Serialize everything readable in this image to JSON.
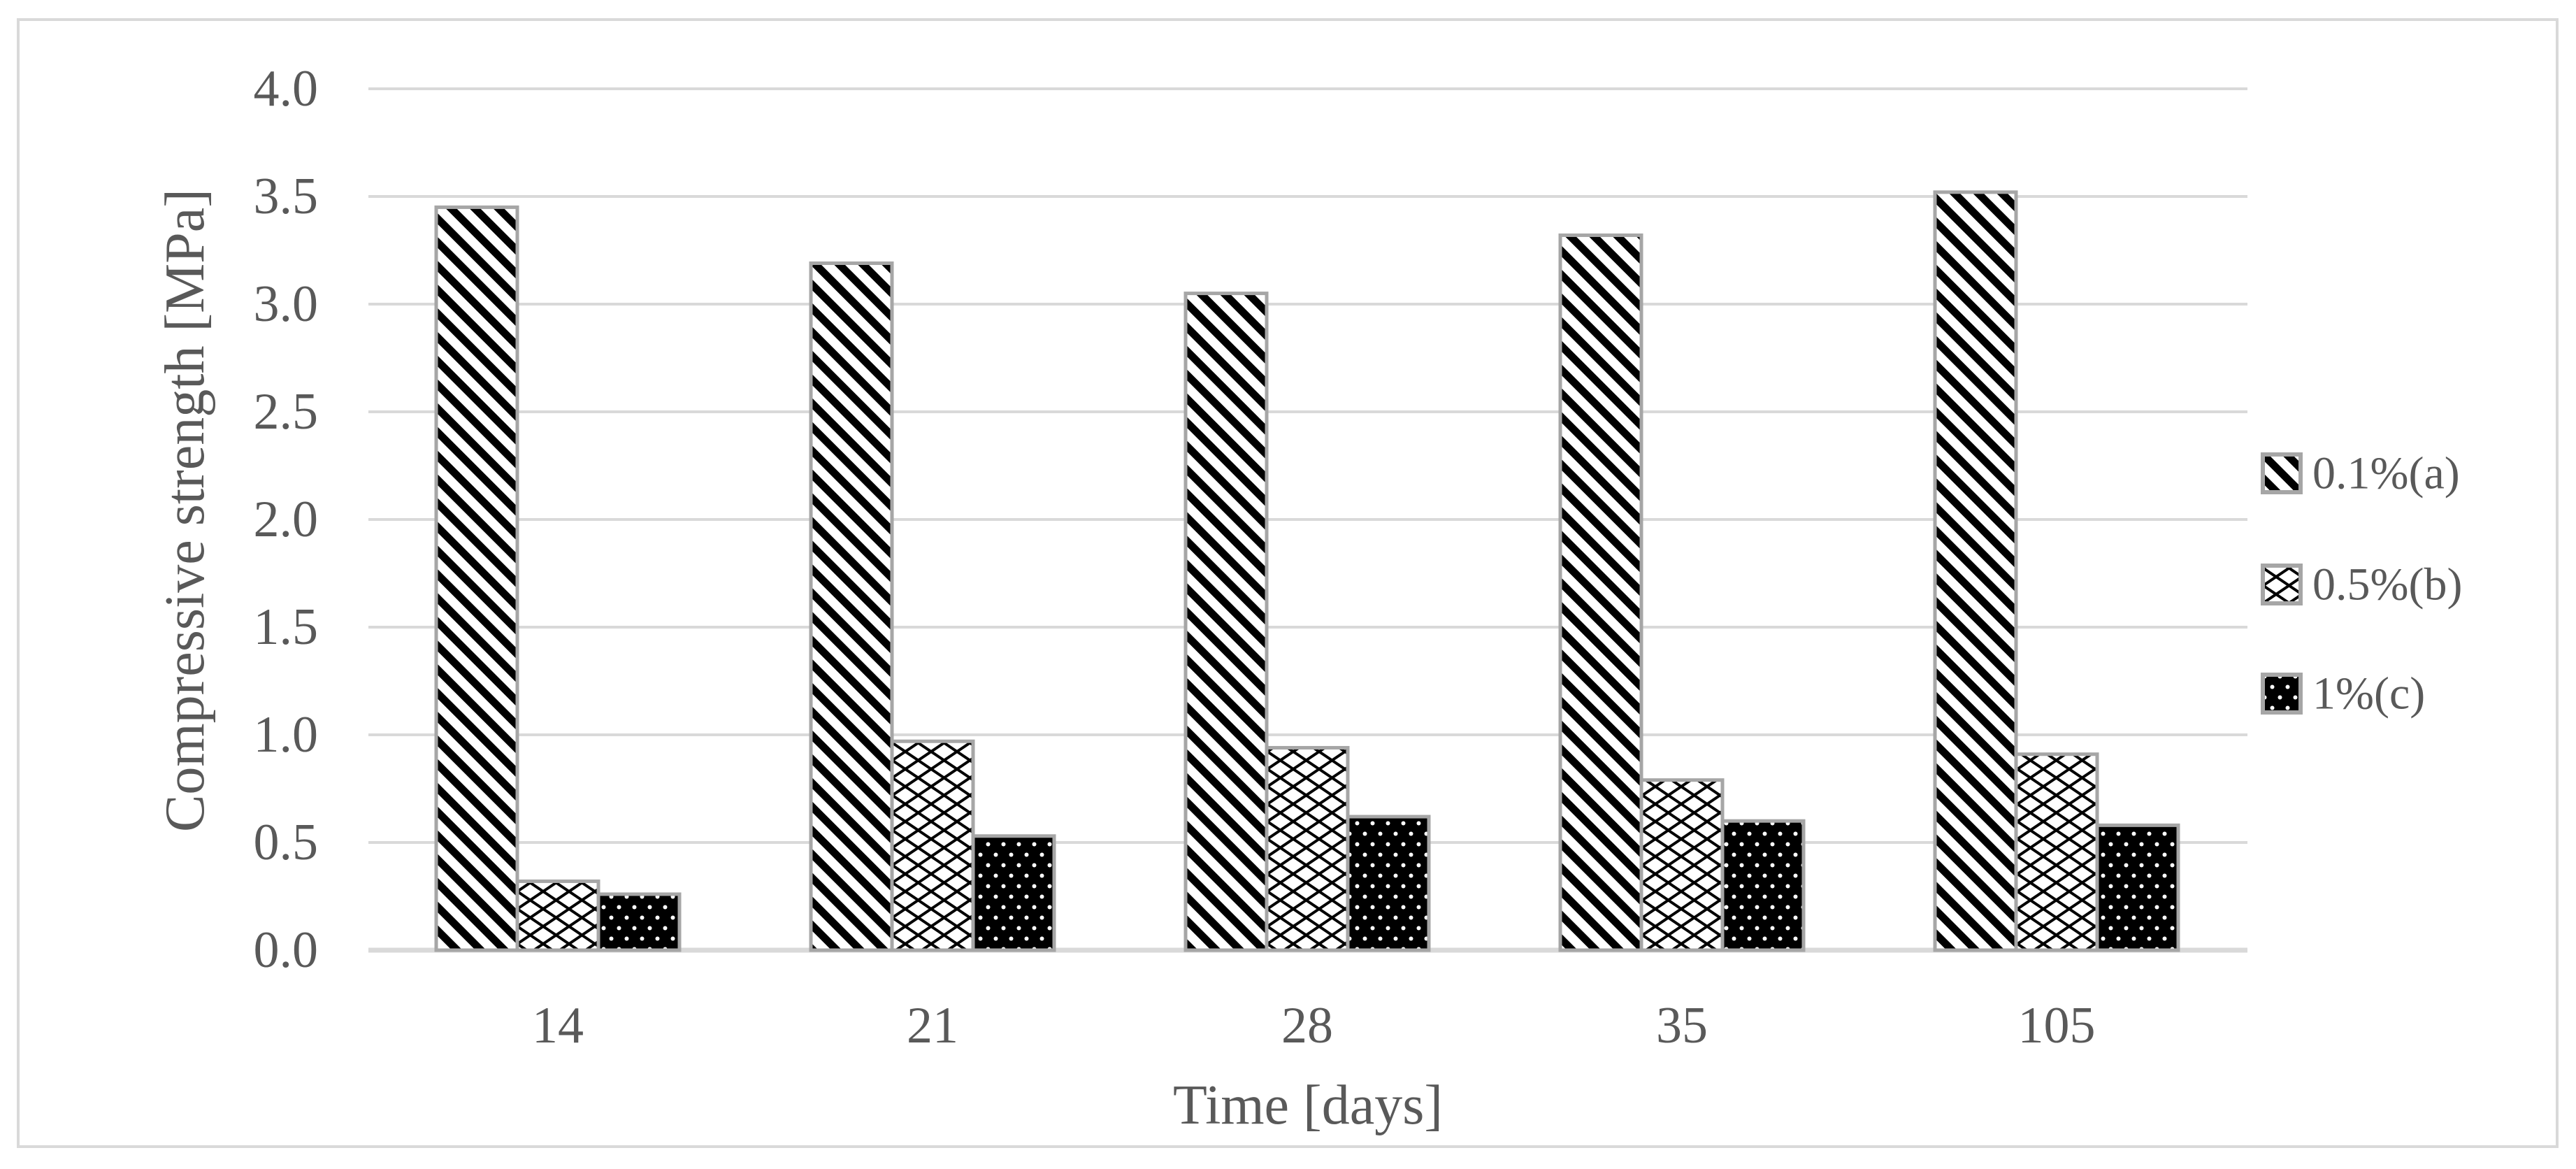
{
  "chart_data": {
    "type": "bar",
    "title": "",
    "categories": [
      "14",
      "21",
      "28",
      "35",
      "105"
    ],
    "series": [
      {
        "name": "0.1%(a)",
        "pattern": "diagonal-stripes",
        "values": [
          3.45,
          3.19,
          3.05,
          3.32,
          3.52
        ]
      },
      {
        "name": "0.5%(b)",
        "pattern": "diamond-lattice",
        "values": [
          0.32,
          0.97,
          0.94,
          0.79,
          0.91
        ]
      },
      {
        "name": "1%(c)",
        "pattern": "black-white-dots",
        "values": [
          0.26,
          0.53,
          0.62,
          0.6,
          0.58
        ]
      }
    ],
    "xlabel": "Time [days]",
    "ylabel": "Compressive strength [MPa]",
    "ylim": [
      0,
      4
    ],
    "ytick_step": 0.5,
    "yticks": [
      "0.0",
      "0.5",
      "1.0",
      "1.5",
      "2.0",
      "2.5",
      "3.0",
      "3.5",
      "4.0"
    ],
    "grid": "horizontal-only",
    "legend_position": "right-middle"
  },
  "colors": {
    "background": "#ffffff",
    "text": "#595959",
    "gridline": "#d9d9d9",
    "axis_line": "#d9d9d9",
    "frame_border": "#d9d9d9",
    "bar_border": "#a6a6a6",
    "pattern_foreground": "#000000",
    "pattern_background": "#ffffff"
  }
}
